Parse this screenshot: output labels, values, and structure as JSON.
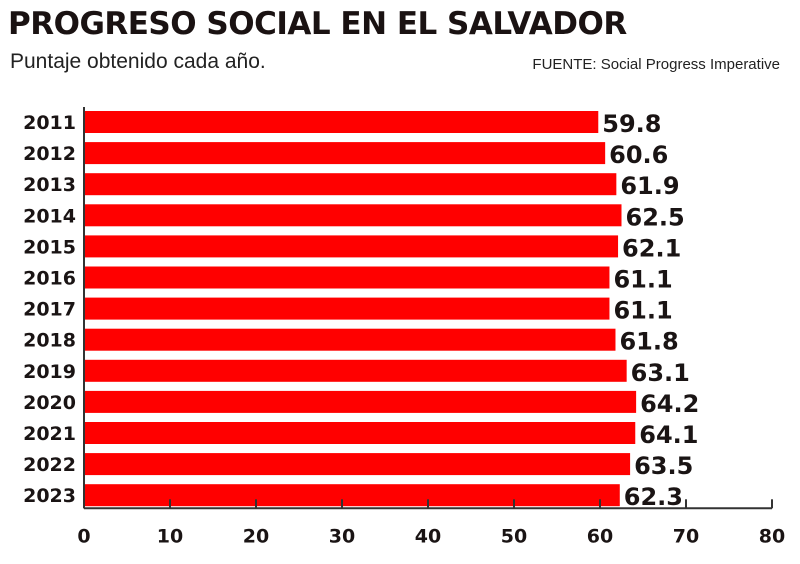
{
  "header": {
    "title": "PROGRESO SOCIAL EN EL SALVADOR",
    "subtitle": "Puntaje obtenido cada año.",
    "source": "FUENTE: Social Progress Imperative"
  },
  "colors": {
    "bar": "#ff0000",
    "text": "#1a1414",
    "axis": "#333333"
  },
  "chart_data": {
    "type": "bar",
    "orientation": "horizontal",
    "title": "PROGRESO SOCIAL EN EL SALVADOR",
    "subtitle": "Puntaje obtenido cada año.",
    "source": "FUENTE: Social Progress Imperative",
    "categories": [
      "2011",
      "2012",
      "2013",
      "2014",
      "2015",
      "2016",
      "2017",
      "2018",
      "2019",
      "2020",
      "2021",
      "2022",
      "2023"
    ],
    "values": [
      59.8,
      60.6,
      61.9,
      62.5,
      62.1,
      61.1,
      61.1,
      61.8,
      63.1,
      64.2,
      64.1,
      63.5,
      62.3
    ],
    "value_labels": [
      "59.8",
      "60.6",
      "61.9",
      "62.5",
      "62.1",
      "61.1",
      "61.1",
      "61.8",
      "63.1",
      "64.2",
      "64.1",
      "63.5",
      "62.3"
    ],
    "xlabel": "",
    "ylabel": "",
    "xlim": [
      0,
      80
    ],
    "xticks": [
      0,
      10,
      20,
      30,
      40,
      50,
      60,
      70,
      80
    ],
    "xtick_labels": [
      "0",
      "10",
      "20",
      "30",
      "40",
      "50",
      "60",
      "70",
      "80"
    ],
    "grid": false,
    "legend": "none"
  }
}
